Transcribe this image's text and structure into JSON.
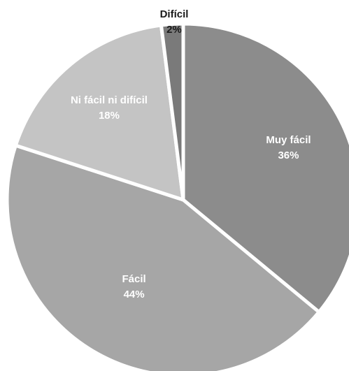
{
  "chart_data": {
    "type": "pie",
    "categories": [
      "Muy fácil",
      "Fácil",
      "Ni fácil ni difícil",
      "Difícil"
    ],
    "values": [
      36,
      44,
      18,
      2
    ],
    "value_labels": [
      "36%",
      "44%",
      "18%",
      "2%"
    ],
    "colors": [
      "#8c8c8c",
      "#a6a6a6",
      "#c4c4c4",
      "#7a7a7a"
    ],
    "start": "12 o'clock",
    "direction": "clockwise",
    "legend": "none"
  }
}
